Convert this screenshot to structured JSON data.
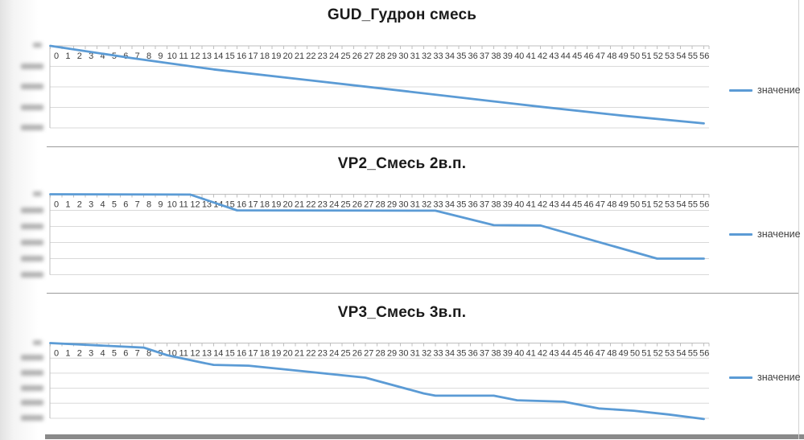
{
  "page_background": "#ffffff",
  "colors": {
    "series_line": "#5B9BD5",
    "gridline": "#D9D9D9",
    "axis_line": "#BFBFBF",
    "tick_label": "#3b3b3b",
    "title_text": "#1a1a1a",
    "legend_text": "#3f3f3f",
    "chart_divider": "#9b9b9b",
    "bottom_bar": "#8a8a8a",
    "redaction_smudge": "#9f9f9f"
  },
  "x_labels": [
    0,
    1,
    2,
    3,
    4,
    5,
    6,
    7,
    8,
    9,
    10,
    11,
    12,
    13,
    14,
    15,
    16,
    17,
    18,
    19,
    20,
    21,
    22,
    23,
    24,
    25,
    26,
    27,
    28,
    29,
    30,
    31,
    32,
    33,
    34,
    35,
    36,
    37,
    38,
    39,
    40,
    41,
    42,
    43,
    44,
    45,
    46,
    47,
    48,
    49,
    50,
    51,
    52,
    53,
    54,
    55,
    56
  ],
  "chart_data": [
    {
      "type": "line",
      "title": "GUD_Гудрон смесь",
      "legend_label": "значение",
      "legend_position": "right",
      "grid": true,
      "x_axis": {
        "labels_shown": "0 to 56, step 1",
        "labels_position": "below top zero line"
      },
      "y_axis": {
        "zero_label_at_top": true,
        "tick_labels_readable": false,
        "tick_label_style": "blurred smudges (redacted in source)",
        "gridline_divisions": 4
      },
      "series": [
        {
          "name": "значение",
          "description": "near-linear steady decline across full range",
          "breakpoints_x": [
            0,
            7,
            14,
            28,
            42,
            49,
            56
          ],
          "breakpoints_y_units_below_zero": [
            0,
            0.6,
            1.15,
            2.05,
            2.97,
            3.4,
            3.78
          ]
        }
      ]
    },
    {
      "type": "line",
      "title": "VP2_Смесь 2в.п.",
      "legend_label": "значение",
      "legend_position": "right",
      "grid": true,
      "x_axis": {
        "labels_shown": "0 to 56, step 1",
        "labels_position": "below top zero line"
      },
      "y_axis": {
        "zero_label_at_top": true,
        "tick_labels_readable": false,
        "tick_label_style": "blurred smudges (redacted in source)",
        "gridline_divisions": 5
      },
      "series": [
        {
          "name": "значение",
          "description": "flat at zero 0-12, step down 12-16, plateau 16-33, step down 33-38, plateau 38-42, long decline 42-52, flat 52-56",
          "breakpoints_x": [
            0,
            12,
            16,
            33,
            38,
            42,
            52,
            56
          ],
          "breakpoints_y_units_below_zero": [
            0,
            0.02,
            1.0,
            1.02,
            1.92,
            1.94,
            4.0,
            4.0
          ]
        }
      ]
    },
    {
      "type": "line",
      "title": "VP3_Смесь 3в.п.",
      "legend_label": "значение",
      "legend_position": "right",
      "grid": true,
      "x_axis": {
        "labels_shown": "0 to 56, step 1",
        "labels_position": "below top zero line"
      },
      "y_axis": {
        "zero_label_at_top": true,
        "tick_labels_readable": false,
        "tick_label_style": "blurred smudges (redacted in source)",
        "gridline_divisions": 5
      },
      "series": [
        {
          "name": "значение",
          "description": "gradual decline 0-9, steeper 9-13, plateau 14-17, gradual decline to 32, plateau 33-38, small steps and slow decline to 56",
          "breakpoints_x": [
            0,
            4,
            8,
            10,
            13,
            14,
            17,
            22,
            27,
            32,
            33,
            38,
            40,
            44,
            47,
            50,
            53,
            56
          ],
          "breakpoints_y_units_below_zero": [
            0,
            0.15,
            0.3,
            0.8,
            1.3,
            1.45,
            1.5,
            1.9,
            2.3,
            3.35,
            3.5,
            3.5,
            3.8,
            3.9,
            4.35,
            4.5,
            4.75,
            5.05
          ]
        }
      ]
    }
  ]
}
